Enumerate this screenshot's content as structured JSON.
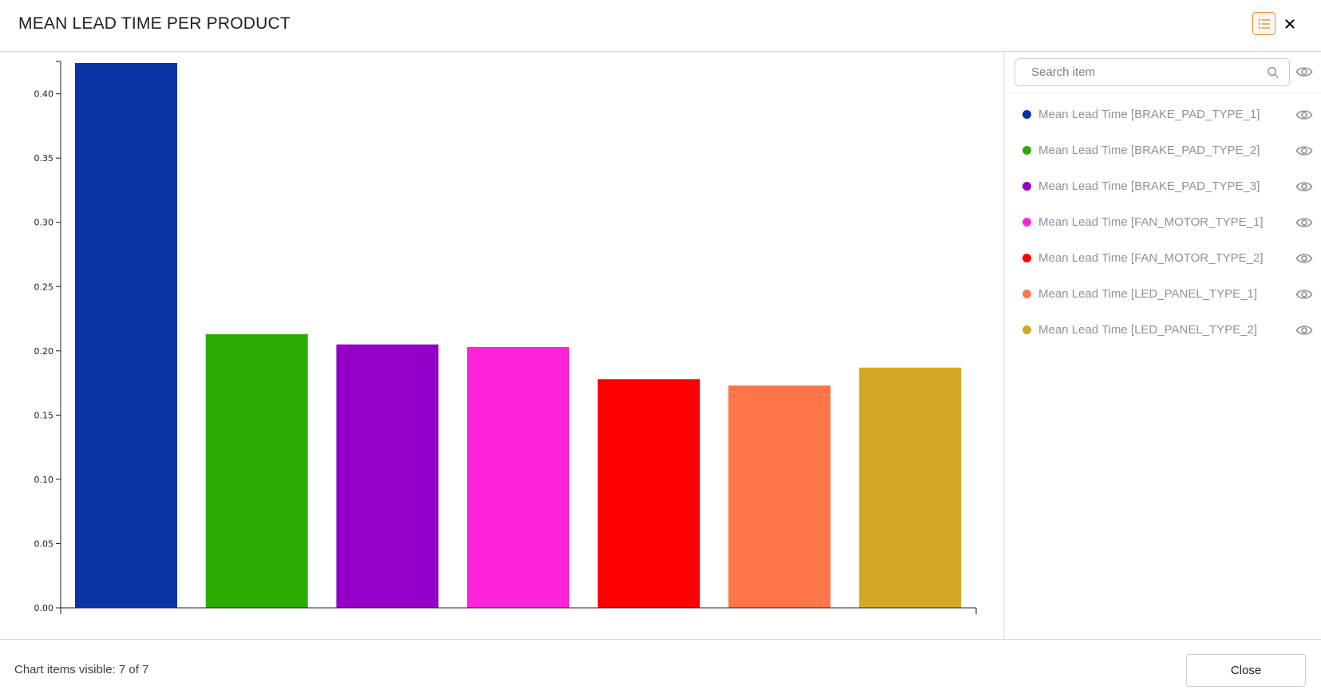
{
  "dialog": {
    "title": "MEAN LEAD TIME PER PRODUCT"
  },
  "icons": {
    "legend_toggle": "list-icon",
    "close": "close-icon",
    "search": "search-icon",
    "visibility": "eye-icon"
  },
  "colors": {
    "accent": "#f0883e"
  },
  "search": {
    "placeholder": "Search item"
  },
  "chart_data": {
    "type": "bar",
    "categories": [
      "Mean Lead Time [BRAKE_PAD_TYPE_1]",
      "Mean Lead Time [BRAKE_PAD_TYPE_2]",
      "Mean Lead Time [BRAKE_PAD_TYPE_3]",
      "Mean Lead Time [FAN_MOTOR_TYPE_1]",
      "Mean Lead Time [FAN_MOTOR_TYPE_2]",
      "Mean Lead Time [LED_PANEL_TYPE_1]",
      "Mean Lead Time [LED_PANEL_TYPE_2]"
    ],
    "values": [
      0.424,
      0.213,
      0.205,
      0.203,
      0.178,
      0.173,
      0.187
    ],
    "colors": [
      "#0a33a3",
      "#2eab03",
      "#9500c8",
      "#ff24d8",
      "#ff0000",
      "#ff764a",
      "#d4a824"
    ],
    "ylim": [
      0,
      0.424
    ],
    "yticks": [
      "0.00",
      "0.05",
      "0.10",
      "0.15",
      "0.20",
      "0.25",
      "0.30",
      "0.35",
      "0.40"
    ],
    "title": "",
    "xlabel": "",
    "ylabel": "",
    "grid": false,
    "legend_position": "right-panel"
  },
  "legend": {
    "items": [
      {
        "label": "Mean Lead Time [BRAKE_PAD_TYPE_1]",
        "color": "#0a33a3"
      },
      {
        "label": "Mean Lead Time [BRAKE_PAD_TYPE_2]",
        "color": "#2eab03"
      },
      {
        "label": "Mean Lead Time [BRAKE_PAD_TYPE_3]",
        "color": "#9500c8"
      },
      {
        "label": "Mean Lead Time [FAN_MOTOR_TYPE_1]",
        "color": "#ff24d8"
      },
      {
        "label": "Mean Lead Time [FAN_MOTOR_TYPE_2]",
        "color": "#ff0000"
      },
      {
        "label": "Mean Lead Time [LED_PANEL_TYPE_1]",
        "color": "#ff764a"
      },
      {
        "label": "Mean Lead Time [LED_PANEL_TYPE_2]",
        "color": "#d4a824"
      }
    ]
  },
  "footer": {
    "status": "Chart items visible: 7 of 7",
    "close_label": "Close"
  }
}
